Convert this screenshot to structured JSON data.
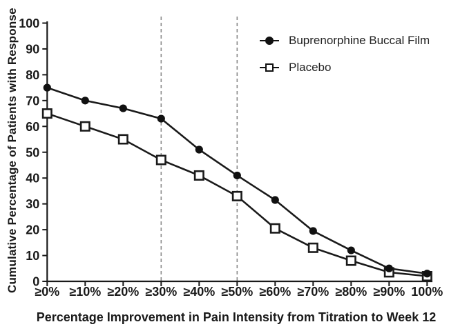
{
  "figure": {
    "y_axis_title": "Cumulative Percentage of Patients with Response",
    "x_axis_title": "Percentage Improvement in Pain Intensity from Titration to Week 12"
  },
  "legend": {
    "items": [
      {
        "label": "Buprenorphine Buccal Film",
        "marker": "filled-circle"
      },
      {
        "label": "Placebo",
        "marker": "open-square"
      }
    ]
  },
  "colors": {
    "line": "#1a1a1a",
    "marker_fill": "#111111",
    "open_marker_fill": "#ffffff",
    "reference_line": "#8c8c8c",
    "background": "#ffffff"
  },
  "chart_data": {
    "type": "line",
    "title": "",
    "xlabel": "Percentage Improvement in Pain Intensity from Titration to Week 12",
    "ylabel": "Cumulative Percentage of Patients with Response",
    "categories": [
      "≥0%",
      "≥10%",
      "≥20%",
      "≥30%",
      "≥40%",
      "≥50%",
      "≥60%",
      "≥70%",
      "≥80%",
      "≥90%",
      "100%"
    ],
    "series": [
      {
        "name": "Buprenorphine Buccal Film",
        "marker": "filled-circle",
        "values": [
          75,
          70,
          67,
          63,
          51,
          41,
          31.5,
          19.5,
          12,
          5,
          3
        ]
      },
      {
        "name": "Placebo",
        "marker": "open-square",
        "values": [
          65,
          60,
          55,
          47,
          41,
          33,
          20.5,
          13,
          8,
          3.5,
          2
        ]
      }
    ],
    "ylim": [
      0,
      100
    ],
    "y_ticks": [
      0,
      10,
      20,
      30,
      40,
      50,
      60,
      70,
      80,
      90,
      100
    ],
    "reference_lines": {
      "x_categories": [
        "≥30%",
        "≥50%"
      ],
      "style": "dashed-vertical"
    },
    "grid": false,
    "legend_position": "top-right-inside"
  }
}
